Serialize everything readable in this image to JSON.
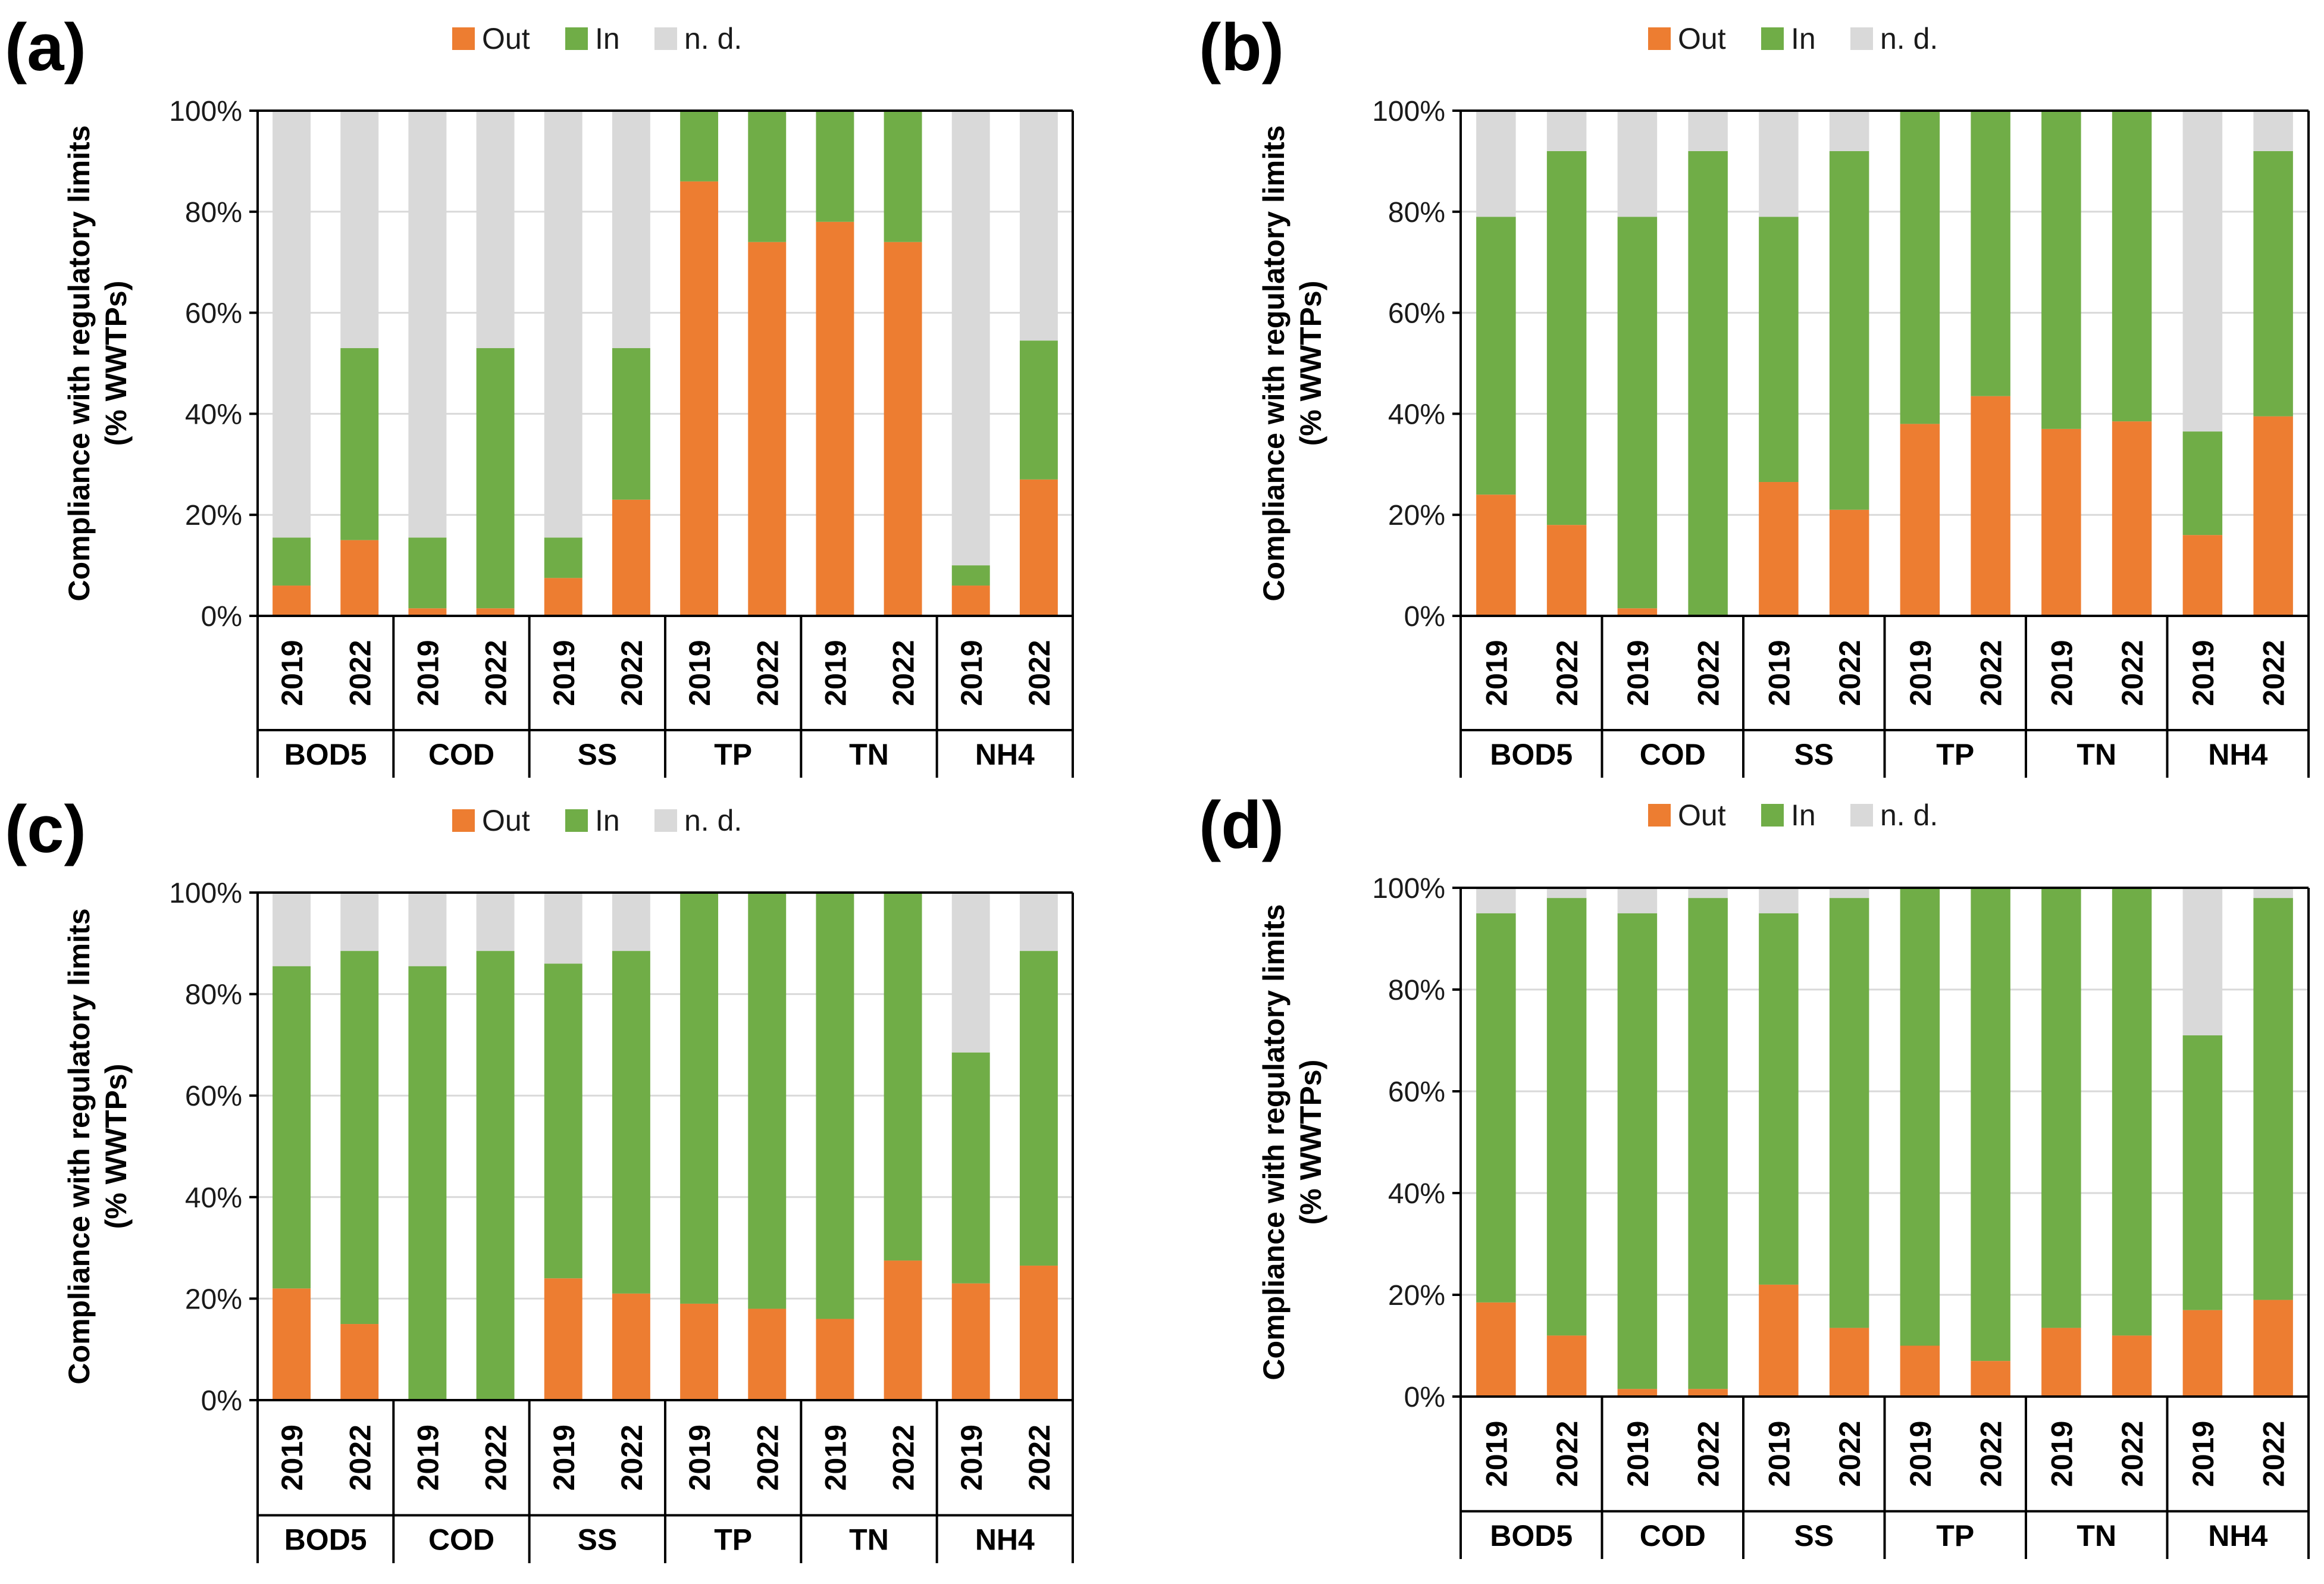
{
  "colors": {
    "out": "#ED7D31",
    "in": "#70AD47",
    "nd": "#D9D9D9",
    "axis": "#000000",
    "grid": "#D9D9D9"
  },
  "chart_data": [
    {
      "type": "bar",
      "panel": "(a)",
      "legend": [
        "Out",
        "In",
        "n. d."
      ],
      "ylabel": [
        "Compliance with regulatory limits",
        "(% WWTPs)"
      ],
      "yticks": [
        "0%",
        "20%",
        "40%",
        "60%",
        "80%",
        "100%"
      ],
      "ylim": [
        0,
        100
      ],
      "groups": [
        "BOD5",
        "COD",
        "SS",
        "TP",
        "TN",
        "NH4"
      ],
      "years": [
        "2019",
        "2022"
      ],
      "series": [
        {
          "name": "Out",
          "values": [
            6,
            15,
            1.5,
            1.5,
            7.5,
            23,
            86,
            74,
            78,
            74,
            6,
            27
          ]
        },
        {
          "name": "In",
          "values": [
            9.5,
            38,
            14,
            51.5,
            8,
            30,
            14,
            26,
            22,
            26,
            4,
            27.5
          ]
        },
        {
          "name": "n. d.",
          "values": [
            84.5,
            47,
            84.5,
            47,
            84.5,
            47,
            0,
            0,
            0,
            0,
            90,
            45.5
          ]
        }
      ]
    },
    {
      "type": "bar",
      "panel": "(b)",
      "legend": [
        "Out",
        "In",
        "n. d."
      ],
      "ylabel": [
        "Compliance with regulatory limits",
        "(% WWTPs)"
      ],
      "yticks": [
        "0%",
        "20%",
        "40%",
        "60%",
        "80%",
        "100%"
      ],
      "ylim": [
        0,
        100
      ],
      "groups": [
        "BOD5",
        "COD",
        "SS",
        "TP",
        "TN",
        "NH4"
      ],
      "years": [
        "2019",
        "2022"
      ],
      "series": [
        {
          "name": "Out",
          "values": [
            24,
            18,
            1.5,
            0,
            26.5,
            21,
            38,
            43.5,
            37,
            38.5,
            16,
            39.5
          ]
        },
        {
          "name": "In",
          "values": [
            55,
            74,
            77.5,
            92,
            52.5,
            71,
            62,
            56.5,
            63,
            61.5,
            20.5,
            52.5
          ]
        },
        {
          "name": "n. d.",
          "values": [
            21,
            8,
            21,
            8,
            21,
            8,
            0,
            0,
            0,
            0,
            63.5,
            8
          ]
        }
      ]
    },
    {
      "type": "bar",
      "panel": "(c)",
      "legend": [
        "Out",
        "In",
        "n. d."
      ],
      "ylabel": [
        "Compliance with regulatory limits",
        "(% WWTPs)"
      ],
      "yticks": [
        "0%",
        "20%",
        "40%",
        "60%",
        "80%",
        "100%"
      ],
      "ylim": [
        0,
        100
      ],
      "groups": [
        "BOD5",
        "COD",
        "SS",
        "TP",
        "TN",
        "NH4"
      ],
      "years": [
        "2019",
        "2022"
      ],
      "series": [
        {
          "name": "Out",
          "values": [
            22,
            15,
            0,
            0,
            24,
            21,
            19,
            18,
            16,
            27.5,
            23,
            26.5
          ]
        },
        {
          "name": "In",
          "values": [
            63.5,
            73.5,
            85.5,
            88.5,
            62,
            67.5,
            81,
            82,
            84,
            72.5,
            45.5,
            62
          ]
        },
        {
          "name": "n. d.",
          "values": [
            14.5,
            11.5,
            14.5,
            11.5,
            14,
            11.5,
            0,
            0,
            0,
            0,
            31.5,
            11.5
          ]
        }
      ]
    },
    {
      "type": "bar",
      "panel": "(d)",
      "legend": [
        "Out",
        "In",
        "n. d."
      ],
      "ylabel": [
        "Compliance with regulatory limits",
        "(% WWTPs)"
      ],
      "yticks": [
        "0%",
        "20%",
        "40%",
        "60%",
        "80%",
        "100%"
      ],
      "ylim": [
        0,
        100
      ],
      "groups": [
        "BOD5",
        "COD",
        "SS",
        "TP",
        "TN",
        "NH4"
      ],
      "years": [
        "2019",
        "2022"
      ],
      "series": [
        {
          "name": "Out",
          "values": [
            18.5,
            12,
            1.5,
            1.5,
            22,
            13.5,
            10,
            7,
            13.5,
            12,
            17,
            19
          ]
        },
        {
          "name": "In",
          "values": [
            76.5,
            86,
            93.5,
            96.5,
            73,
            84.5,
            90,
            93,
            86.5,
            88,
            54,
            79
          ]
        },
        {
          "name": "n. d.",
          "values": [
            5,
            2,
            5,
            2,
            5,
            2,
            0,
            0,
            0,
            0,
            29,
            2
          ]
        }
      ]
    }
  ]
}
